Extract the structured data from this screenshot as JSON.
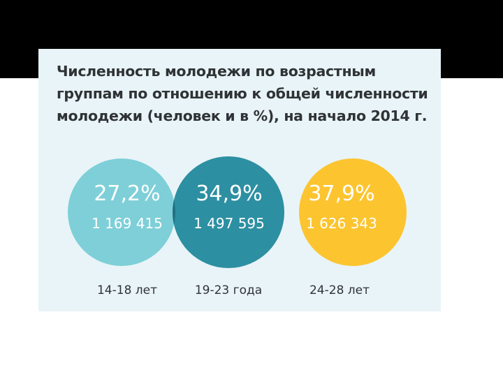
{
  "title_lines": [
    "Численность молодежи по возрастным",
    "группам по отношению к общей численности",
    "молодежи (человек и в %), на начало 2014 г."
  ],
  "colors": {
    "background_band": "#000000",
    "panel": "#e9f4f8",
    "circle_1": "#7ecfd8",
    "circle_2": "#2d8fa2",
    "circle_3": "#fcc42f",
    "overlap_1_2": "#1f6f83",
    "overlap_2_3": "#f7a030",
    "text_dark": "#2f3336"
  },
  "chart_data": {
    "type": "venn",
    "title": "Численность молодежи по возрастным группам по отношению к общей численности молодежи (человек и в %), на начало 2014 г.",
    "groups": [
      {
        "label": "14-18 лет",
        "percent_label": "27,2%",
        "count_label": "1 169 415",
        "percent": 27.2,
        "count": 1169415
      },
      {
        "label": "19-23 года",
        "percent_label": "34,9%",
        "count_label": "1 497 595",
        "percent": 34.9,
        "count": 1497595
      },
      {
        "label": "24-28 лет",
        "percent_label": "37,9%",
        "count_label": "1 626 343",
        "percent": 37.9,
        "count": 1626343
      }
    ]
  }
}
